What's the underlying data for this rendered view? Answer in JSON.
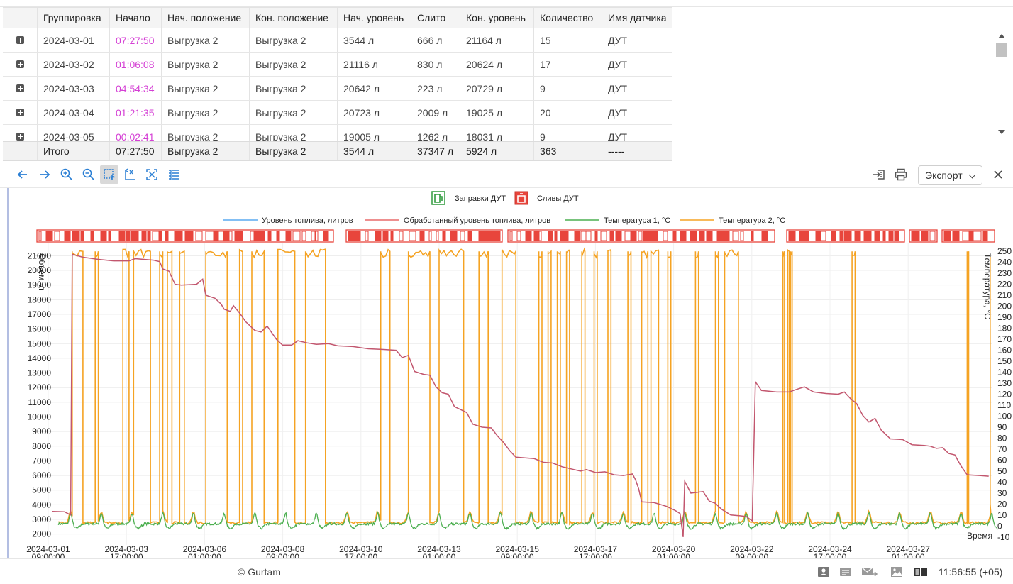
{
  "table": {
    "headers": [
      "",
      "Группировка",
      "Начало",
      "Нач. положение",
      "Кон. положение",
      "Нач. уровень",
      "Слито",
      "Кон. уровень",
      "Количество",
      "Имя датчика"
    ],
    "rows": [
      [
        "2024-03-01",
        "07:27:50",
        "Выгрузка 2",
        "Выгрузка 2",
        "3544 л",
        "666 л",
        "21164 л",
        "15",
        "ДУТ"
      ],
      [
        "2024-03-02",
        "01:06:08",
        "Выгрузка 2",
        "Выгрузка 2",
        "21116 л",
        "830 л",
        "20624 л",
        "17",
        "ДУТ"
      ],
      [
        "2024-03-03",
        "04:54:34",
        "Выгрузка 2",
        "Выгрузка 2",
        "20642 л",
        "223 л",
        "20729 л",
        "9",
        "ДУТ"
      ],
      [
        "2024-03-04",
        "01:21:35",
        "Выгрузка 2",
        "Выгрузка 2",
        "20723 л",
        "2009 л",
        "19025 л",
        "20",
        "ДУТ"
      ],
      [
        "2024-03-05",
        "00:02:41",
        "Выгрузка 2",
        "Выгрузка 2",
        "19005 л",
        "1262 л",
        "18031 л",
        "9",
        "ДУТ"
      ]
    ],
    "total": [
      "Итого",
      "07:27:50",
      "Выгрузка 2",
      "Выгрузка 2",
      "3544 л",
      "37347 л",
      "5924 л",
      "363",
      "-----"
    ]
  },
  "toolbar": {
    "left_buttons": [
      "arrow-left-icon",
      "arrow-right-icon",
      "zoom-in-icon",
      "zoom-out-icon",
      "zoom-selection-icon",
      "axis-x-icon",
      "fit-icon",
      "list-settings-icon"
    ],
    "active_button": "zoom-selection-icon",
    "right_buttons": [
      "insert-icon",
      "print-icon"
    ],
    "export_label": "Экспорт",
    "close_icon": "close-icon"
  },
  "chart_data": {
    "type": "line",
    "top_legend": [
      {
        "name": "Заправки ДУТ",
        "icon": "fuel-pump-icon",
        "color": "#2e9a3c"
      },
      {
        "name": "Сливы ДУТ",
        "icon": "canister-icon",
        "color": "#e8453c"
      }
    ],
    "legend": [
      {
        "name": "Уровень топлива, литров",
        "color": "#5aaaf0"
      },
      {
        "name": "Обработанный уровень топлива, литров",
        "color": "#e96a6a"
      },
      {
        "name": "Температура 1, °C",
        "color": "#4caf50"
      },
      {
        "name": "Температура 2, °C",
        "color": "#f5a323"
      }
    ],
    "ylabel_left": "Объем, л",
    "ylabel_right": "Температура, °C",
    "xlabel": "Время",
    "y_left_ticks": [
      2000,
      3000,
      4000,
      5000,
      6000,
      7000,
      8000,
      9000,
      10000,
      11000,
      12000,
      13000,
      14000,
      15000,
      16000,
      17000,
      18000,
      19000,
      20000,
      21000
    ],
    "y_right_ticks": [
      -10,
      0,
      10,
      20,
      30,
      40,
      50,
      60,
      70,
      80,
      90,
      100,
      110,
      120,
      130,
      140,
      150,
      160,
      170,
      180,
      190,
      200,
      210,
      220,
      230,
      240,
      250
    ],
    "ylim_left": [
      1500,
      21600
    ],
    "ylim_right": [
      -14,
      254
    ],
    "x_ticks": [
      [
        "2024-03-01",
        "09:00:00"
      ],
      [
        "2024-03-03",
        "17:00:00"
      ],
      [
        "2024-03-06",
        "01:00:00"
      ],
      [
        "2024-03-08",
        "09:00:00"
      ],
      [
        "2024-03-10",
        "17:00:00"
      ],
      [
        "2024-03-13",
        "01:00:00"
      ],
      [
        "2024-03-15",
        "09:00:00"
      ],
      [
        "2024-03-17",
        "17:00:00"
      ],
      [
        "2024-03-20",
        "01:00:00"
      ],
      [
        "2024-03-22",
        "09:00:00"
      ],
      [
        "2024-03-24",
        "17:00:00"
      ],
      [
        "2024-03-27",
        "01:00:00"
      ]
    ],
    "fuel_series": [
      [
        0,
        3550
      ],
      [
        0.4,
        3520
      ],
      [
        0.6,
        3300
      ],
      [
        0.65,
        21100
      ],
      [
        1.0,
        20900
      ],
      [
        1.5,
        20750
      ],
      [
        2.0,
        20650
      ],
      [
        2.5,
        20650
      ],
      [
        2.7,
        20800
      ],
      [
        3.3,
        20700
      ],
      [
        3.5,
        20600
      ],
      [
        3.6,
        20100
      ],
      [
        3.8,
        19950
      ],
      [
        4.0,
        19050
      ],
      [
        4.2,
        19000
      ],
      [
        4.7,
        19050
      ],
      [
        4.9,
        19400
      ],
      [
        5.0,
        18300
      ],
      [
        5.3,
        18100
      ],
      [
        5.5,
        17700
      ],
      [
        5.6,
        17350
      ],
      [
        5.8,
        17200
      ],
      [
        5.9,
        17600
      ],
      [
        6.1,
        17100
      ],
      [
        6.3,
        16500
      ],
      [
        6.6,
        15900
      ],
      [
        6.8,
        15800
      ],
      [
        7.0,
        16200
      ],
      [
        7.3,
        15300
      ],
      [
        7.5,
        14900
      ],
      [
        7.8,
        14900
      ],
      [
        8.0,
        15200
      ],
      [
        8.3,
        15050
      ],
      [
        8.6,
        14950
      ],
      [
        9.0,
        15000
      ],
      [
        9.3,
        14850
      ],
      [
        9.8,
        14800
      ],
      [
        10.3,
        14650
      ],
      [
        10.8,
        14600
      ],
      [
        11.2,
        14550
      ],
      [
        11.4,
        14050
      ],
      [
        11.6,
        14200
      ],
      [
        11.8,
        13100
      ],
      [
        12.1,
        12900
      ],
      [
        12.3,
        12850
      ],
      [
        12.5,
        12050
      ],
      [
        12.7,
        11650
      ],
      [
        12.9,
        11550
      ],
      [
        13.1,
        10700
      ],
      [
        13.3,
        10500
      ],
      [
        13.5,
        10300
      ],
      [
        13.7,
        9500
      ],
      [
        14.0,
        9300
      ],
      [
        14.3,
        9250
      ],
      [
        14.5,
        8700
      ],
      [
        14.7,
        8250
      ],
      [
        14.9,
        7700
      ],
      [
        15.1,
        7250
      ],
      [
        15.4,
        7200
      ],
      [
        15.7,
        7150
      ],
      [
        16.0,
        6900
      ],
      [
        16.3,
        6850
      ],
      [
        16.6,
        6600
      ],
      [
        16.9,
        6450
      ],
      [
        17.2,
        6300
      ],
      [
        17.4,
        6400
      ],
      [
        17.7,
        6200
      ],
      [
        18.0,
        6250
      ],
      [
        18.3,
        6050
      ],
      [
        18.6,
        6000
      ],
      [
        18.9,
        6100
      ],
      [
        19.0,
        5700
      ],
      [
        19.1,
        5100
      ],
      [
        19.2,
        4200
      ],
      [
        19.6,
        4150
      ],
      [
        20.0,
        3900
      ],
      [
        20.3,
        3600
      ],
      [
        20.45,
        3400
      ],
      [
        20.55,
        1800
      ],
      [
        20.6,
        5600
      ],
      [
        20.8,
        4800
      ],
      [
        21.2,
        4900
      ],
      [
        21.4,
        4250
      ],
      [
        21.6,
        4100
      ],
      [
        21.8,
        3700
      ],
      [
        22.1,
        3300
      ],
      [
        22.4,
        3250
      ],
      [
        22.6,
        3200
      ],
      [
        22.8,
        2900
      ],
      [
        22.9,
        12400
      ],
      [
        23.1,
        11800
      ],
      [
        23.6,
        11700
      ],
      [
        24.0,
        11700
      ],
      [
        24.2,
        11850
      ],
      [
        24.5,
        12050
      ],
      [
        24.8,
        11700
      ],
      [
        25.2,
        11600
      ],
      [
        25.6,
        11550
      ],
      [
        25.8,
        11700
      ],
      [
        26.0,
        11250
      ],
      [
        26.2,
        10900
      ],
      [
        26.4,
        10100
      ],
      [
        26.6,
        9650
      ],
      [
        26.8,
        9900
      ],
      [
        27.0,
        9100
      ],
      [
        27.3,
        8500
      ],
      [
        27.7,
        8450
      ],
      [
        28.0,
        8100
      ],
      [
        28.4,
        8050
      ],
      [
        28.6,
        8000
      ],
      [
        28.8,
        7850
      ],
      [
        29.0,
        7900
      ],
      [
        29.2,
        7500
      ],
      [
        29.4,
        7400
      ],
      [
        29.6,
        6650
      ],
      [
        29.8,
        6050
      ],
      [
        30.2,
        6000
      ],
      [
        30.5,
        5950
      ]
    ],
    "x_range_days": [
      -0.2,
      30.6
    ]
  },
  "footer": {
    "copyright": "© Gurtam",
    "icons": [
      "user-card-icon",
      "messages-icon",
      "mail-forward-icon",
      "image-icon",
      "layout-panels-icon"
    ],
    "clock": "11:56:55 (+05)"
  }
}
